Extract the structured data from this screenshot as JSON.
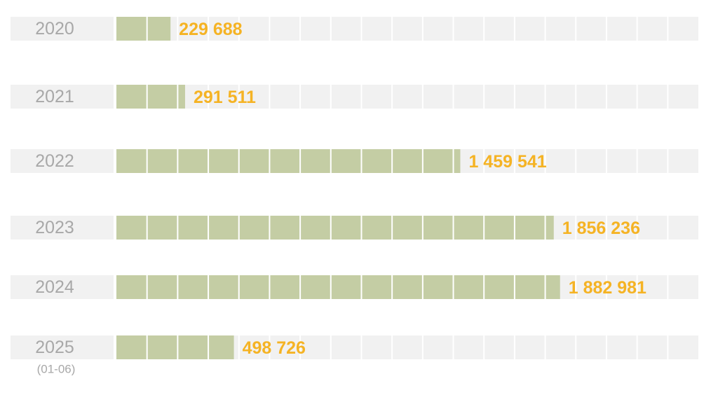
{
  "chart_data": {
    "type": "bar",
    "orientation": "horizontal",
    "categories": [
      "2020",
      "2021",
      "2022",
      "2023",
      "2024",
      "2025"
    ],
    "annotation": "(01-06)",
    "values": [
      229688,
      291511,
      1459541,
      1856236,
      1882981,
      498726
    ],
    "value_labels": [
      "229 688",
      "291 511",
      "1 459 541",
      "1 856 236",
      "1 882 981",
      "498 726"
    ],
    "color": "#c4cda4",
    "label_color": "#f5b324",
    "xlim": [
      0,
      2470000
    ]
  }
}
